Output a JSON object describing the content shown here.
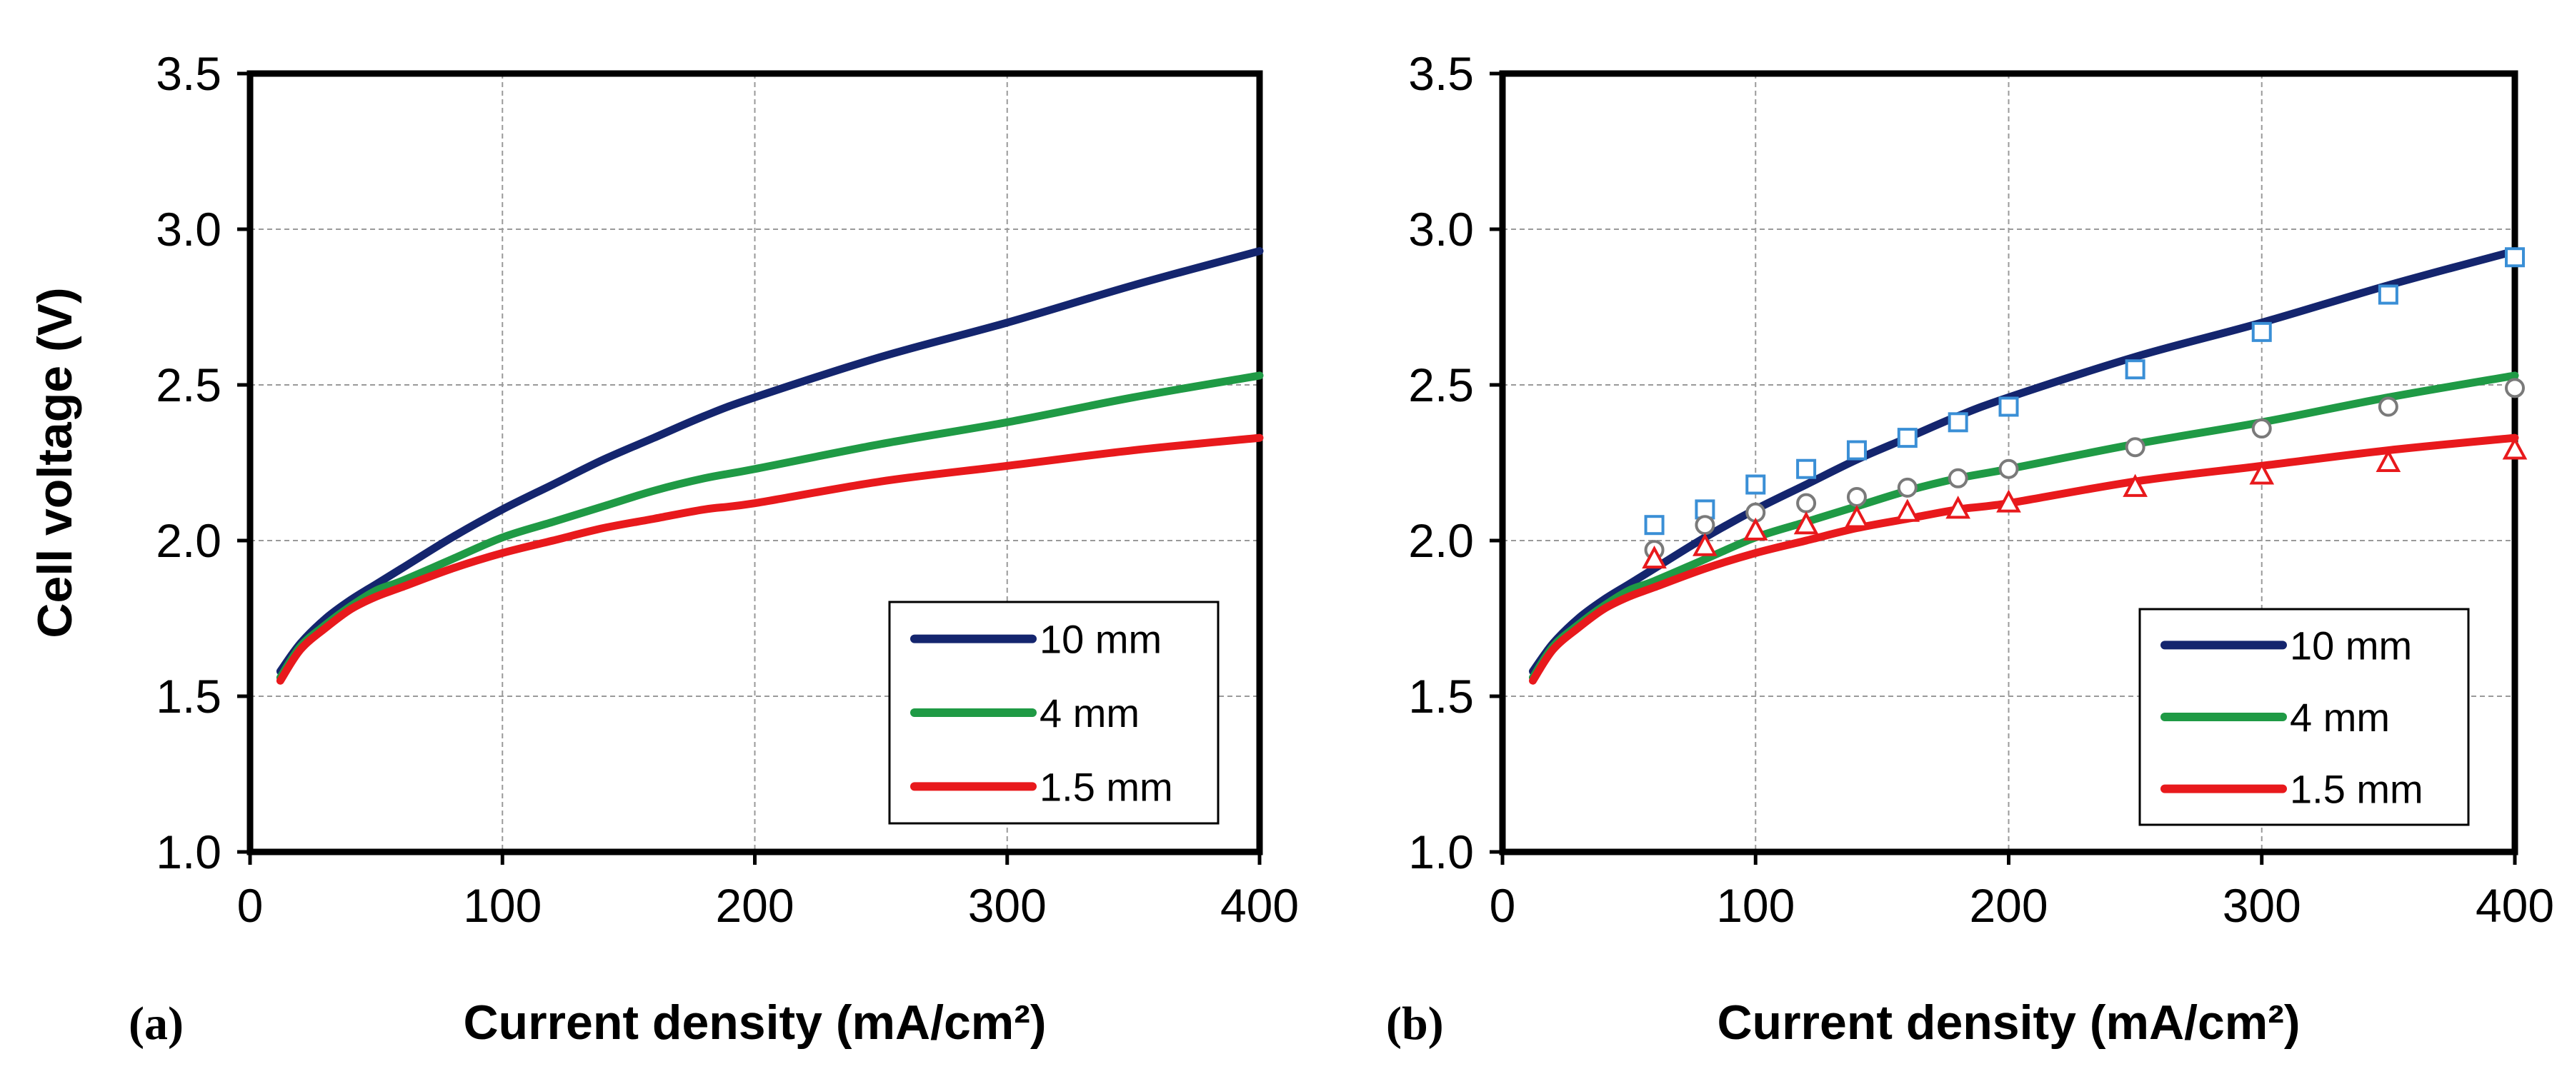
{
  "chart_data": [
    {
      "type": "line",
      "panel_label": "(a)",
      "xlabel": "Current density (mA/cm²)",
      "ylabel": "Cell voltage (V)",
      "xlim": [
        0,
        400
      ],
      "ylim": [
        1.0,
        3.5
      ],
      "xticks": [
        "0",
        "100",
        "200",
        "300",
        "400"
      ],
      "yticks": [
        "1.0",
        "1.5",
        "2.0",
        "2.5",
        "3.0",
        "3.5"
      ],
      "grid": true,
      "legend_position": "bottom-right",
      "x": [
        12,
        20,
        30,
        40,
        50,
        60,
        80,
        100,
        120,
        140,
        160,
        180,
        200,
        250,
        300,
        350,
        400
      ],
      "series": [
        {
          "name": "10 mm",
          "color": "#14256e",
          "values": [
            1.58,
            1.67,
            1.75,
            1.81,
            1.86,
            1.91,
            2.01,
            2.1,
            2.18,
            2.26,
            2.33,
            2.4,
            2.46,
            2.59,
            2.7,
            2.82,
            2.93
          ]
        },
        {
          "name": "4 mm",
          "color": "#1f9a45",
          "values": [
            1.56,
            1.66,
            1.73,
            1.79,
            1.84,
            1.87,
            1.94,
            2.01,
            2.06,
            2.11,
            2.16,
            2.2,
            2.23,
            2.31,
            2.38,
            2.46,
            2.53
          ]
        },
        {
          "name": "1.5 mm",
          "color": "#e8191c",
          "values": [
            1.55,
            1.65,
            1.72,
            1.78,
            1.82,
            1.85,
            1.91,
            1.96,
            2.0,
            2.04,
            2.07,
            2.1,
            2.12,
            2.19,
            2.24,
            2.29,
            2.33
          ]
        }
      ]
    },
    {
      "type": "line",
      "panel_label": "(b)",
      "xlabel": "Current density (mA/cm²)",
      "xlim": [
        0,
        400
      ],
      "ylim": [
        1.0,
        3.5
      ],
      "xticks": [
        "0",
        "100",
        "200",
        "300",
        "400"
      ],
      "yticks": [
        "1.0",
        "1.5",
        "2.0",
        "2.5",
        "3.0",
        "3.5"
      ],
      "grid": true,
      "legend_position": "bottom-right",
      "x": [
        12,
        20,
        30,
        40,
        50,
        60,
        80,
        100,
        120,
        140,
        160,
        180,
        200,
        250,
        300,
        350,
        400
      ],
      "series": [
        {
          "name": "10 mm",
          "color": "#14256e",
          "values": [
            1.58,
            1.67,
            1.75,
            1.81,
            1.86,
            1.91,
            2.01,
            2.1,
            2.18,
            2.26,
            2.33,
            2.4,
            2.46,
            2.59,
            2.7,
            2.82,
            2.93
          ]
        },
        {
          "name": "4 mm",
          "color": "#1f9a45",
          "values": [
            1.56,
            1.66,
            1.73,
            1.79,
            1.84,
            1.87,
            1.94,
            2.01,
            2.06,
            2.11,
            2.16,
            2.2,
            2.23,
            2.31,
            2.38,
            2.46,
            2.53
          ]
        },
        {
          "name": "1.5 mm",
          "color": "#e8191c",
          "values": [
            1.55,
            1.65,
            1.72,
            1.78,
            1.82,
            1.85,
            1.91,
            1.96,
            2.0,
            2.04,
            2.07,
            2.1,
            2.12,
            2.19,
            2.24,
            2.29,
            2.33
          ]
        }
      ],
      "measured": [
        {
          "marker": "square",
          "color": "#3a8fd6",
          "x": [
            60,
            80,
            100,
            120,
            140,
            160,
            180,
            200,
            250,
            300,
            350,
            400
          ],
          "y": [
            2.05,
            2.1,
            2.18,
            2.23,
            2.29,
            2.33,
            2.38,
            2.43,
            2.55,
            2.67,
            2.79,
            2.91
          ]
        },
        {
          "marker": "circle",
          "color": "#7a7a7a",
          "x": [
            60,
            80,
            100,
            120,
            140,
            160,
            180,
            200,
            250,
            300,
            350,
            400
          ],
          "y": [
            1.97,
            2.05,
            2.09,
            2.12,
            2.14,
            2.17,
            2.2,
            2.23,
            2.3,
            2.36,
            2.43,
            2.49
          ]
        },
        {
          "marker": "triangle",
          "color": "#e8191c",
          "x": [
            60,
            80,
            100,
            120,
            140,
            160,
            180,
            200,
            250,
            300,
            350,
            400
          ],
          "y": [
            1.94,
            1.98,
            2.03,
            2.05,
            2.07,
            2.09,
            2.1,
            2.12,
            2.17,
            2.21,
            2.25,
            2.29
          ]
        }
      ]
    }
  ]
}
